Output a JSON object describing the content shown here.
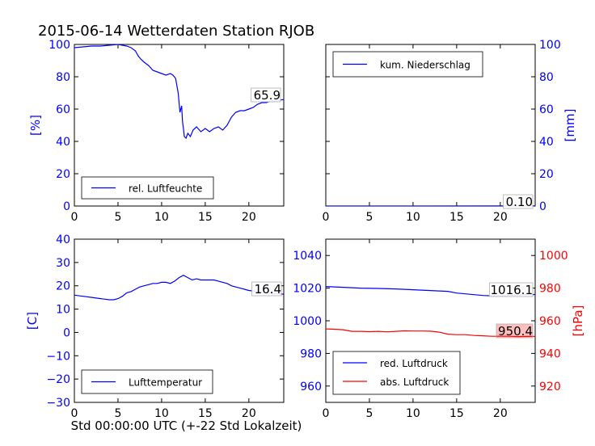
{
  "title": "2015-06-14 Wetterdaten Station RJOB",
  "chart_data": [
    {
      "type": "line",
      "id": "humidity",
      "ylabel": "[%]",
      "xlim": [
        0,
        24
      ],
      "ylim": [
        0,
        100
      ],
      "xticks": [
        "0",
        "5",
        "10",
        "15",
        "20"
      ],
      "yticks": [
        "0",
        "20",
        "40",
        "60",
        "80",
        "100"
      ],
      "legend": "lower-left",
      "series": [
        {
          "name": "rel. Luftfeuchte",
          "color": "#0000ff",
          "x": [
            0,
            1,
            2,
            3,
            4,
            5,
            5.5,
            6,
            6.5,
            7,
            7.3,
            7.6,
            8,
            8.5,
            9,
            9.5,
            10,
            10.5,
            11,
            11.3,
            11.6,
            11.9,
            12.1,
            12.3,
            12.4,
            12.5,
            12.6,
            12.8,
            13,
            13.3,
            13.6,
            14,
            14.5,
            15,
            15.5,
            16,
            16.5,
            17,
            17.5,
            18,
            18.5,
            19,
            19.5,
            20,
            20.5,
            21,
            21.5,
            22,
            22.5,
            23,
            23.5,
            24
          ],
          "y": [
            98,
            98.5,
            99,
            99,
            99.5,
            100,
            99.5,
            99,
            98,
            96,
            93,
            91,
            89,
            87,
            84,
            83,
            82,
            81,
            82,
            81,
            79,
            70,
            58,
            62,
            52,
            48,
            43,
            42,
            45,
            43,
            47,
            49,
            46,
            48,
            46,
            48,
            49,
            47,
            50,
            55,
            58,
            59,
            59,
            60,
            61,
            63,
            64,
            64,
            65,
            65,
            65.5,
            65.9
          ]
        }
      ],
      "annotation": "65.9"
    },
    {
      "type": "line",
      "id": "precipitation",
      "ylabel": "[mm]",
      "xlim": [
        0,
        24
      ],
      "ylim": [
        0,
        100
      ],
      "xticks": [
        "0",
        "5",
        "10",
        "15",
        "20"
      ],
      "yticks": [
        "0",
        "20",
        "40",
        "60",
        "80",
        "100"
      ],
      "legend": "upper-left",
      "series": [
        {
          "name": "kum. Niederschlag",
          "color": "#0000ff",
          "x": [
            0,
            24
          ],
          "y": [
            0,
            0.1
          ]
        }
      ],
      "annotation": "0.10"
    },
    {
      "type": "line",
      "id": "temperature",
      "ylabel": "[C]",
      "xlabel": "Std 00:00:00 UTC (+-22 Std Lokalzeit)",
      "xlim": [
        0,
        24
      ],
      "ylim": [
        -30,
        40
      ],
      "xticks": [
        "0",
        "5",
        "10",
        "15",
        "20"
      ],
      "yticks": [
        "−30",
        "−20",
        "−10",
        "0",
        "10",
        "20",
        "30",
        "40"
      ],
      "legend": "lower-left",
      "series": [
        {
          "name": "Lufttemperatur",
          "color": "#0000ff",
          "x": [
            0,
            1,
            2,
            3,
            4,
            4.5,
            5,
            5.5,
            6,
            6.5,
            7,
            7.5,
            8,
            8.5,
            9,
            9.5,
            10,
            10.5,
            11,
            11.5,
            12,
            12.5,
            13,
            13.5,
            14,
            14.5,
            15,
            15.5,
            16,
            16.5,
            17,
            17.5,
            18,
            18.5,
            19,
            19.5,
            20,
            20.5,
            21,
            22,
            23,
            24
          ],
          "y": [
            16,
            15.5,
            15,
            14.5,
            14,
            14,
            14.5,
            15.5,
            17,
            17.5,
            18.5,
            19.5,
            20,
            20.5,
            21,
            21,
            21.5,
            21.5,
            21,
            22,
            23.5,
            24.5,
            23.5,
            22.5,
            23,
            22.5,
            22.5,
            22.5,
            22.5,
            22,
            21.5,
            21,
            20,
            19.5,
            19,
            18.5,
            18,
            17.8,
            17.5,
            17,
            16.6,
            16.4
          ]
        }
      ],
      "annotation": "16.4"
    },
    {
      "type": "line",
      "id": "pressure",
      "ylabel": "[hPa]",
      "xlim": [
        0,
        24
      ],
      "ylim_left": [
        950,
        1050
      ],
      "ylim_right": [
        910,
        1010
      ],
      "xticks": [
        "0",
        "5",
        "10",
        "15",
        "20"
      ],
      "yticks_left": [
        "960",
        "980",
        "1000",
        "1020",
        "1040"
      ],
      "yticks_right": [
        "920",
        "940",
        "960",
        "980",
        "1000"
      ],
      "legend": "lower-left",
      "series": [
        {
          "name": "red. Luftdruck",
          "color": "#0000ff",
          "axis": "left",
          "x": [
            0,
            2,
            4,
            6,
            8,
            10,
            12,
            14,
            15,
            16,
            17,
            18,
            19,
            20,
            21,
            22,
            23,
            24
          ],
          "y": [
            1021,
            1020.5,
            1020,
            1019.8,
            1019.5,
            1019,
            1018.5,
            1018,
            1017,
            1016.5,
            1016,
            1015.5,
            1015.3,
            1015.2,
            1015.5,
            1015.8,
            1016,
            1016.1
          ]
        },
        {
          "name": "abs. Luftdruck",
          "color": "#ff0000",
          "axis": "right",
          "x": [
            0,
            1,
            2,
            3,
            4,
            5,
            6,
            7,
            8,
            9,
            10,
            11,
            12,
            13,
            14,
            15,
            16,
            17,
            18,
            19,
            20,
            21,
            22,
            23,
            24
          ],
          "y": [
            955,
            954.8,
            954.5,
            953.5,
            953.5,
            953.3,
            953.5,
            953.2,
            953.5,
            953.8,
            953.7,
            953.7,
            953.6,
            953,
            951.8,
            951.5,
            951.5,
            951,
            950.8,
            950.5,
            950.5,
            950.5,
            950.3,
            950.4,
            950.4
          ]
        }
      ],
      "annotation_left": "1016.1",
      "annotation_right": "950.4"
    }
  ]
}
